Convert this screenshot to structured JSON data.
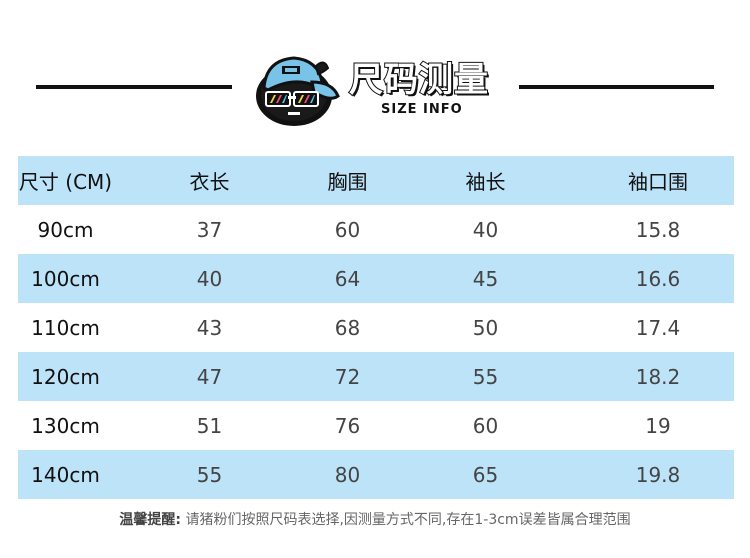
{
  "header": {
    "title": "尺码测量",
    "subtitle": "SIZE INFO",
    "mascot_icon": "cap-sunglasses-mascot-icon"
  },
  "table": {
    "columns": [
      "尺寸 (CM)",
      "衣长",
      "胸围",
      "袖长",
      "袖口围"
    ],
    "rows": [
      [
        "90cm",
        "37",
        "60",
        "40",
        "15.8"
      ],
      [
        "100cm",
        "40",
        "64",
        "45",
        "16.6"
      ],
      [
        "110cm",
        "43",
        "68",
        "50",
        "17.4"
      ],
      [
        "120cm",
        "47",
        "72",
        "55",
        "18.2"
      ],
      [
        "130cm",
        "51",
        "76",
        "60",
        "19"
      ],
      [
        "140cm",
        "55",
        "80",
        "65",
        "19.8"
      ]
    ]
  },
  "note": {
    "label": "温馨提醒:",
    "text": "请猪粉们按照尺码表选择,因测量方式不同,存在1-3cm误差皆属合理范围"
  },
  "colors": {
    "row_shade": "#bde3f9",
    "rule": "#111111",
    "cap_blue": "#79c3e8"
  }
}
